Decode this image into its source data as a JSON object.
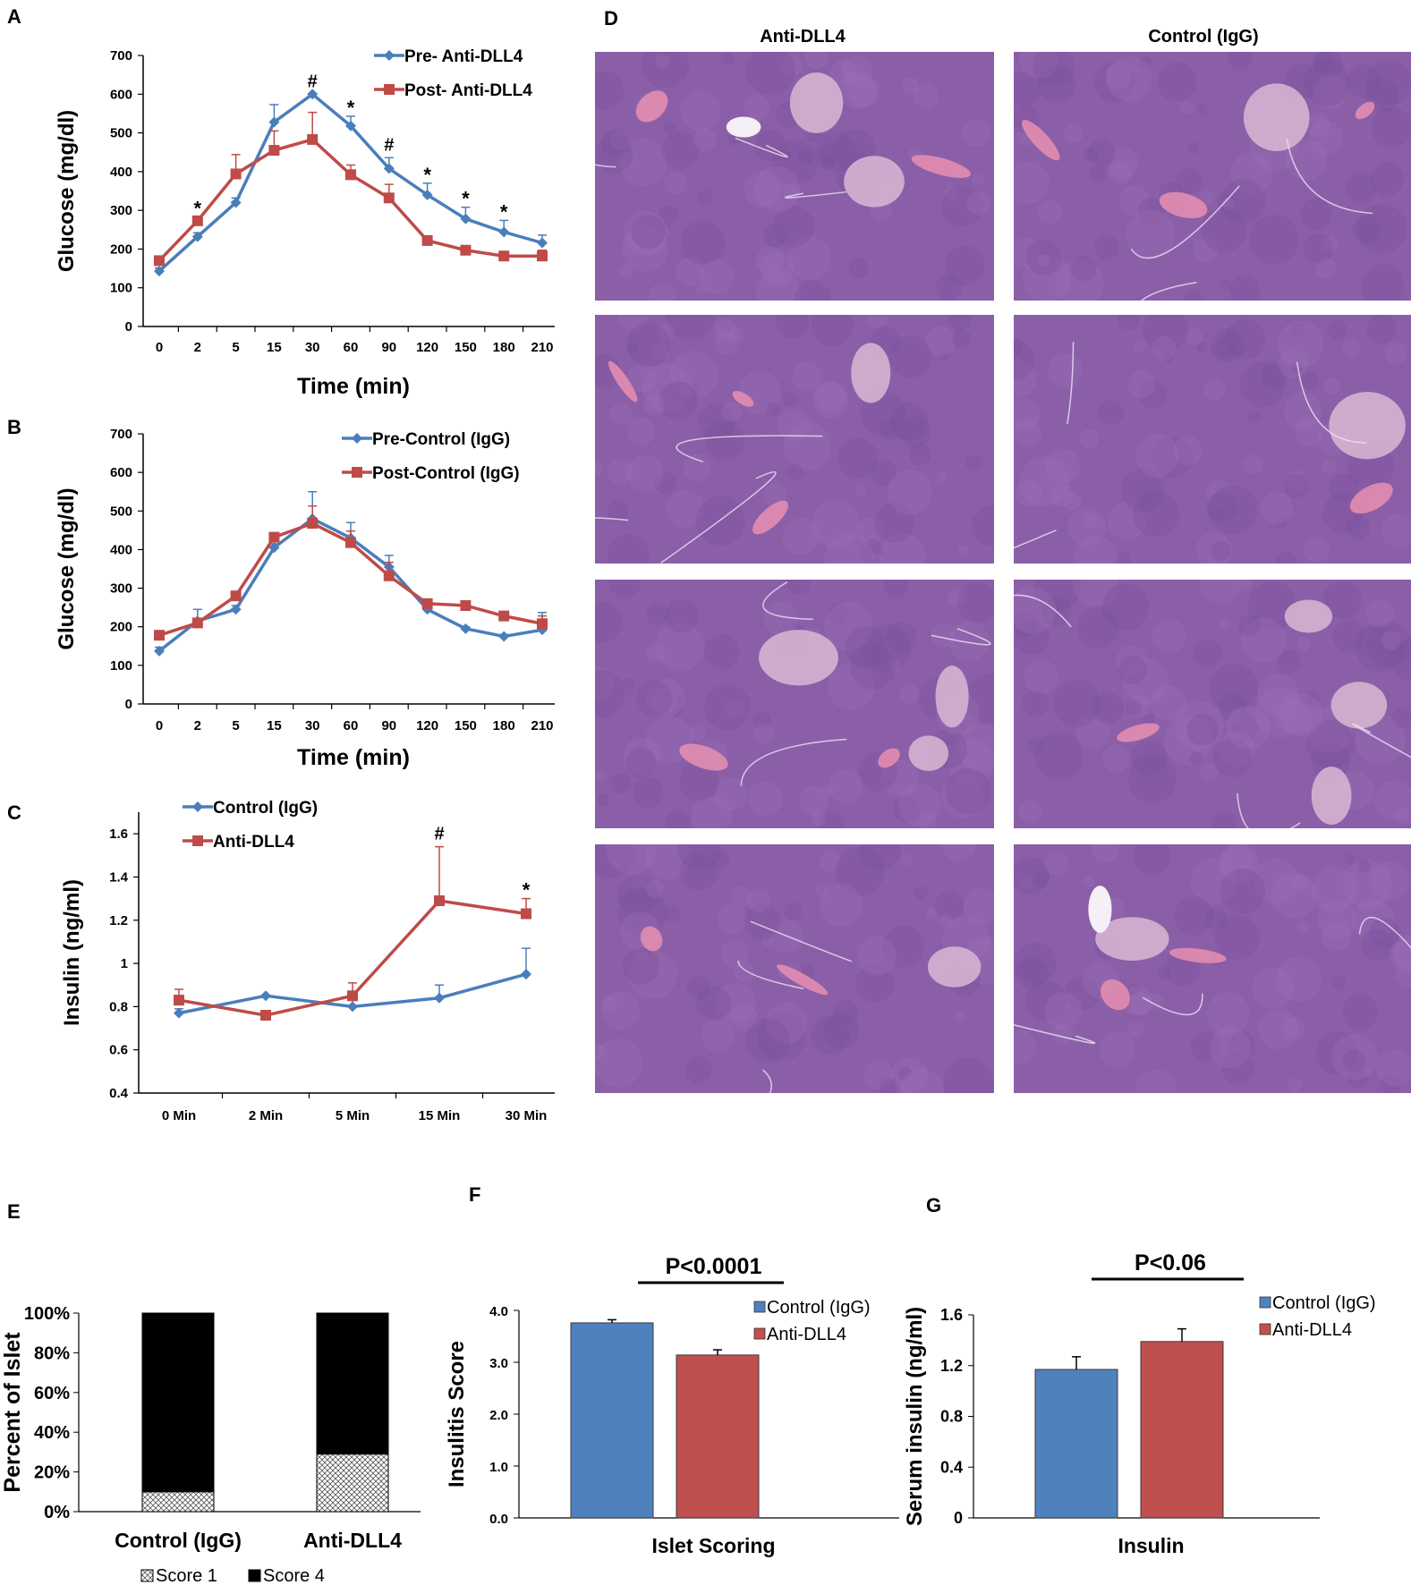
{
  "panel_letters": {
    "A": "A",
    "B": "B",
    "C": "C",
    "D": "D",
    "E": "E",
    "F": "F",
    "G": "G"
  },
  "histology": {
    "col1_title": "Anti-DLL4",
    "col2_title": "Control (IgG)",
    "tissue_color": "#8a5fa8",
    "islet_color": "#d9b8d4",
    "vessel_color": "#e88fb0"
  },
  "colors": {
    "blue": "#4a7ebb",
    "red": "#be4b48",
    "blue_bar": "#4f81bd",
    "red_bar": "#c0504d"
  },
  "chart_data": [
    {
      "id": "A",
      "type": "line",
      "categories": [
        "0",
        "2",
        "5",
        "15",
        "30",
        "60",
        "90",
        "120",
        "150",
        "180",
        "210"
      ],
      "xlabel": "Time (min)",
      "ylabel": "Glucose (mg/dl)",
      "ylim": [
        0,
        700
      ],
      "yticks": [
        "0",
        "100",
        "200",
        "300",
        "400",
        "500",
        "600",
        "700"
      ],
      "legend_position": "top-right",
      "series": [
        {
          "name": "Pre- Anti-DLL4",
          "color": "#4a7ebb",
          "marker": "diamond",
          "values": [
            143,
            232,
            320,
            528,
            600,
            518,
            408,
            340,
            278,
            244,
            216
          ],
          "errors": [
            8,
            10,
            12,
            45,
            0,
            25,
            28,
            30,
            30,
            30,
            20
          ]
        },
        {
          "name": "Post- Anti-DLL4",
          "color": "#be4b48",
          "marker": "square",
          "values": [
            170,
            273,
            394,
            455,
            483,
            392,
            332,
            222,
            197,
            182,
            182
          ],
          "errors": [
            8,
            10,
            50,
            50,
            70,
            25,
            35,
            10,
            5,
            5,
            15
          ]
        }
      ],
      "annotations": [
        {
          "x": "2",
          "text": "*"
        },
        {
          "x": "30",
          "text": "#"
        },
        {
          "x": "60",
          "text": "*"
        },
        {
          "x": "90",
          "text": "#"
        },
        {
          "x": "120",
          "text": "*"
        },
        {
          "x": "150",
          "text": "*"
        },
        {
          "x": "180",
          "text": "*"
        }
      ]
    },
    {
      "id": "B",
      "type": "line",
      "categories": [
        "0",
        "2",
        "5",
        "15",
        "30",
        "60",
        "90",
        "120",
        "150",
        "180",
        "210"
      ],
      "xlabel": "Time (min)",
      "ylabel": "Glucose (mg/dl)",
      "ylim": [
        0,
        700
      ],
      "yticks": [
        "0",
        "100",
        "200",
        "300",
        "400",
        "500",
        "600",
        "700"
      ],
      "legend_position": "top-right",
      "series": [
        {
          "name": "Pre-Control (IgG)",
          "color": "#4a7ebb",
          "marker": "diamond",
          "values": [
            137,
            215,
            245,
            405,
            480,
            430,
            355,
            245,
            195,
            175,
            192
          ],
          "errors": [
            10,
            30,
            10,
            10,
            70,
            40,
            30,
            10,
            5,
            5,
            45
          ]
        },
        {
          "name": "Post-Control (IgG)",
          "color": "#be4b48",
          "marker": "square",
          "values": [
            178,
            210,
            280,
            432,
            468,
            418,
            332,
            260,
            255,
            228,
            208
          ],
          "errors": [
            5,
            10,
            10,
            10,
            45,
            30,
            35,
            10,
            10,
            10,
            20
          ]
        }
      ],
      "annotations": []
    },
    {
      "id": "C",
      "type": "line",
      "categories": [
        "0 Min",
        "2 Min",
        "5 Min",
        "15 Min",
        "30 Min"
      ],
      "xlabel": "",
      "ylabel": "Insulin (ng/ml)",
      "ylim": [
        0.4,
        1.7
      ],
      "yticks": [
        "0.4",
        "0.6",
        "0.8",
        "1",
        "1.2",
        "1.4",
        "1.6"
      ],
      "legend_position": "top-left",
      "series": [
        {
          "name": "Control (IgG)",
          "color": "#4a7ebb",
          "marker": "diamond",
          "values": [
            0.77,
            0.85,
            0.8,
            0.84,
            0.95
          ],
          "errors": [
            0.02,
            0.0,
            0.03,
            0.06,
            0.12
          ]
        },
        {
          "name": "Anti-DLL4",
          "color": "#be4b48",
          "marker": "square",
          "values": [
            0.83,
            0.76,
            0.85,
            1.29,
            1.23
          ],
          "errors": [
            0.05,
            0.02,
            0.06,
            0.25,
            0.07
          ]
        }
      ],
      "annotations": [
        {
          "x": "15 Min",
          "text": "#"
        },
        {
          "x": "30 Min",
          "text": "*"
        }
      ]
    },
    {
      "id": "E",
      "type": "bar",
      "stacked": true,
      "categories": [
        "Control (IgG)",
        "Anti-DLL4"
      ],
      "ylabel": "Percent of Islet",
      "ylim": [
        0,
        100
      ],
      "yticks": [
        "0%",
        "20%",
        "40%",
        "60%",
        "80%",
        "100%"
      ],
      "legend_position": "bottom",
      "series": [
        {
          "name": "Score 1",
          "pattern": "crosshatch",
          "values": [
            10,
            29
          ]
        },
        {
          "name": "Score 4",
          "color": "#000000",
          "values": [
            90,
            71
          ]
        }
      ]
    },
    {
      "id": "F",
      "type": "bar",
      "categories": [
        "Islet Scoring"
      ],
      "xlabel": "Islet Scoring",
      "ylabel": "Insulitis Score",
      "ylim": [
        0,
        4.0
      ],
      "yticks": [
        "0.0",
        "1.0",
        "2.0",
        "3.0",
        "4.0"
      ],
      "legend_position": "top-right",
      "significance": "P<0.0001",
      "series": [
        {
          "name": "Control (IgG)",
          "color": "#4f81bd",
          "values": [
            3.76
          ],
          "errors": [
            0.06
          ]
        },
        {
          "name": "Anti-DLL4",
          "color": "#c0504d",
          "values": [
            3.14
          ],
          "errors": [
            0.1
          ]
        }
      ]
    },
    {
      "id": "G",
      "type": "bar",
      "categories": [
        "Insulin"
      ],
      "xlabel": "Insulin",
      "ylabel": "Serum insulin (ng/ml)",
      "ylim": [
        0,
        1.6
      ],
      "yticks": [
        "0",
        "0.4",
        "0.8",
        "1.2",
        "1.6"
      ],
      "legend_position": "top-right",
      "significance": "P<0.06",
      "series": [
        {
          "name": "Control (IgG)",
          "color": "#4f81bd",
          "values": [
            1.17
          ],
          "errors": [
            0.1
          ]
        },
        {
          "name": "Anti-DLL4",
          "color": "#c0504d",
          "values": [
            1.39
          ],
          "errors": [
            0.1
          ]
        }
      ]
    }
  ]
}
